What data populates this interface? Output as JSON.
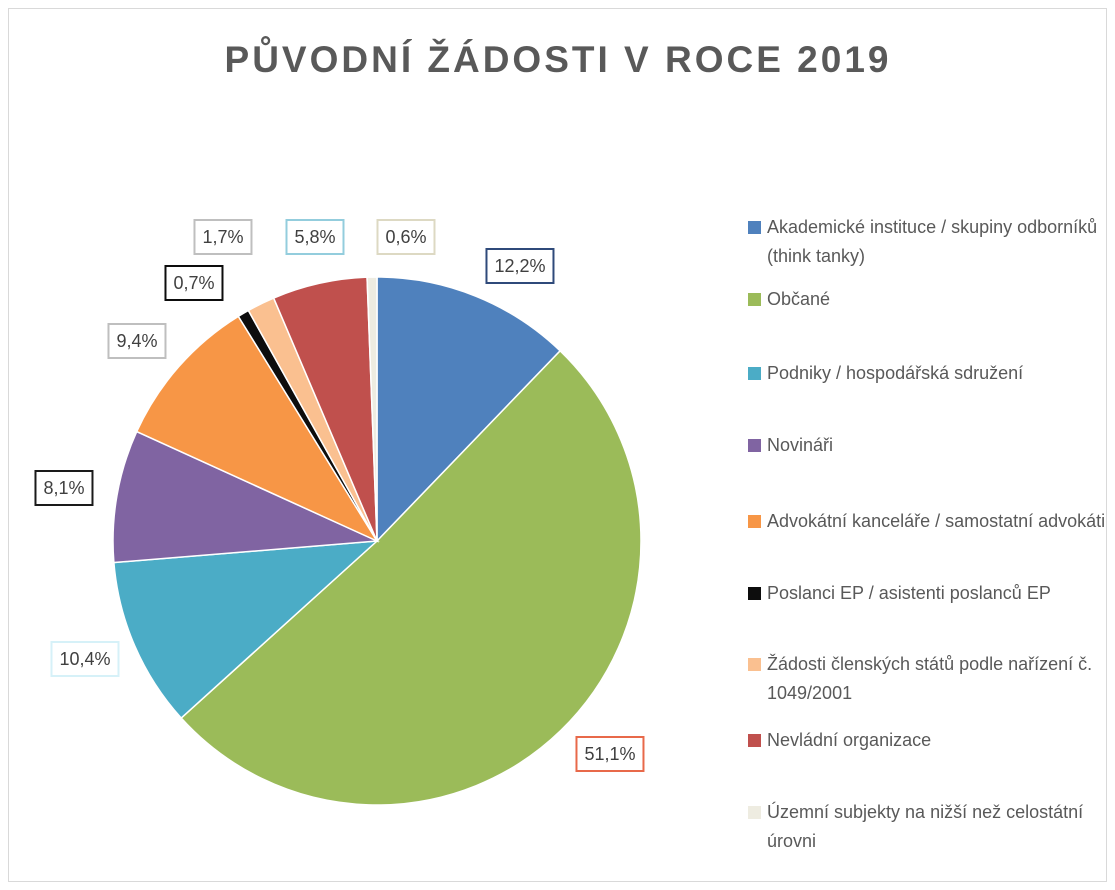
{
  "chart_data": {
    "type": "pie",
    "title": "PŮVODNÍ ŽÁDOSTI V ROCE 2019",
    "categories": [
      "Akademické instituce / skupiny odborníků (think tanky)",
      "Občané",
      "Podniky / hospodářská sdružení",
      "Novináři",
      "Advokátní kanceláře / samostatní advokáti",
      "Poslanci EP / asistenti poslanců EP",
      "Žádosti členských států podle nařízení č. 1049/2001",
      "Nevládní organizace",
      "Územní subjekty na nižší než celostátní úrovni"
    ],
    "values": [
      12.2,
      51.1,
      10.4,
      8.1,
      9.4,
      0.7,
      1.7,
      5.8,
      0.6
    ],
    "value_labels": [
      "12,2%",
      "51,1%",
      "10,4%",
      "8,1%",
      "9,4%",
      "0,7%",
      "1,7%",
      "5,8%",
      "0,6%"
    ],
    "colors": [
      "#4f81bd",
      "#9bbb59",
      "#4bacc6",
      "#8064a2",
      "#f79646",
      "#0d0d0d",
      "#fac090",
      "#c0504d",
      "#eeece1"
    ],
    "label_border_colors": [
      "#2f4a7a",
      "#e8694a",
      "#d6f1f8",
      "#1a1a1a",
      "#bfbfbf",
      "#0d0d0d",
      "#bfbfbf",
      "#93cddd",
      "#ddd9c3"
    ],
    "legend": "right"
  }
}
